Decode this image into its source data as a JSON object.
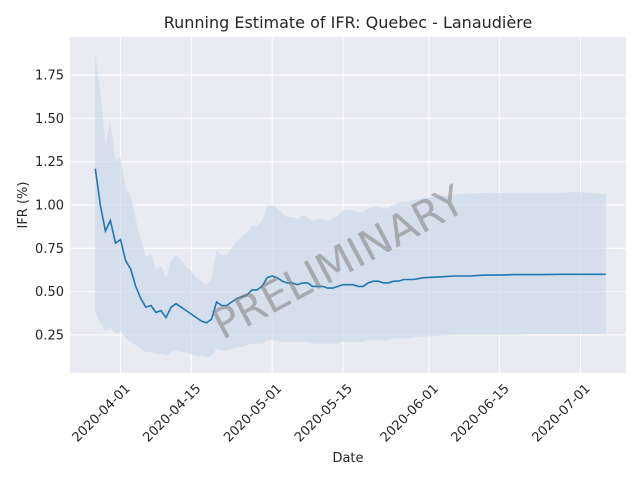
{
  "chart_data": {
    "type": "line",
    "title": "Running Estimate of IFR: Quebec - Lanaudière",
    "xlabel": "Date",
    "ylabel": "IFR (%)",
    "watermark": "PRELIMINARY",
    "x_range": [
      "2020-03-22",
      "2020-07-10"
    ],
    "ylim": [
      0.03,
      1.97
    ],
    "grid": true,
    "x_ticks": [
      "2020-04-01",
      "2020-04-15",
      "2020-05-01",
      "2020-05-15",
      "2020-06-01",
      "2020-06-15",
      "2020-07-01"
    ],
    "y_ticks": [
      0.25,
      0.5,
      0.75,
      1.0,
      1.25,
      1.5,
      1.75
    ],
    "y_tick_labels": [
      "0.25",
      "0.50",
      "0.75",
      "1.00",
      "1.25",
      "1.50",
      "1.75"
    ],
    "colors": {
      "line": "#1f77b4",
      "band": "#c7d6e8",
      "plot_bg": "#eaeaf2",
      "grid": "#ffffff"
    },
    "series": [
      {
        "role": "estimate",
        "points": [
          [
            "2020-03-27",
            1.21
          ],
          [
            "2020-03-28",
            1.0
          ],
          [
            "2020-03-29",
            0.85
          ],
          [
            "2020-03-30",
            0.91
          ],
          [
            "2020-03-31",
            0.78
          ],
          [
            "2020-04-01",
            0.8
          ],
          [
            "2020-04-02",
            0.68
          ],
          [
            "2020-04-03",
            0.63
          ],
          [
            "2020-04-04",
            0.53
          ],
          [
            "2020-04-05",
            0.46
          ],
          [
            "2020-04-06",
            0.41
          ],
          [
            "2020-04-07",
            0.42
          ],
          [
            "2020-04-08",
            0.38
          ],
          [
            "2020-04-09",
            0.39
          ],
          [
            "2020-04-10",
            0.35
          ],
          [
            "2020-04-11",
            0.41
          ],
          [
            "2020-04-12",
            0.43
          ],
          [
            "2020-04-13",
            0.41
          ],
          [
            "2020-04-14",
            0.39
          ],
          [
            "2020-04-15",
            0.37
          ],
          [
            "2020-04-16",
            0.35
          ],
          [
            "2020-04-17",
            0.33
          ],
          [
            "2020-04-18",
            0.32
          ],
          [
            "2020-04-19",
            0.34
          ],
          [
            "2020-04-20",
            0.44
          ],
          [
            "2020-04-21",
            0.42
          ],
          [
            "2020-04-22",
            0.42
          ],
          [
            "2020-04-23",
            0.44
          ],
          [
            "2020-04-24",
            0.46
          ],
          [
            "2020-04-25",
            0.47
          ],
          [
            "2020-04-26",
            0.48
          ],
          [
            "2020-04-27",
            0.51
          ],
          [
            "2020-04-28",
            0.51
          ],
          [
            "2020-04-29",
            0.53
          ],
          [
            "2020-04-30",
            0.58
          ],
          [
            "2020-05-01",
            0.59
          ],
          [
            "2020-05-02",
            0.58
          ],
          [
            "2020-05-03",
            0.56
          ],
          [
            "2020-05-04",
            0.55
          ],
          [
            "2020-05-05",
            0.55
          ],
          [
            "2020-05-06",
            0.54
          ],
          [
            "2020-05-07",
            0.55
          ],
          [
            "2020-05-08",
            0.55
          ],
          [
            "2020-05-09",
            0.53
          ],
          [
            "2020-05-10",
            0.53
          ],
          [
            "2020-05-11",
            0.53
          ],
          [
            "2020-05-12",
            0.52
          ],
          [
            "2020-05-13",
            0.52
          ],
          [
            "2020-05-14",
            0.53
          ],
          [
            "2020-05-15",
            0.54
          ],
          [
            "2020-05-16",
            0.54
          ],
          [
            "2020-05-17",
            0.54
          ],
          [
            "2020-05-18",
            0.53
          ],
          [
            "2020-05-19",
            0.53
          ],
          [
            "2020-05-20",
            0.55
          ],
          [
            "2020-05-21",
            0.56
          ],
          [
            "2020-05-22",
            0.56
          ],
          [
            "2020-05-23",
            0.55
          ],
          [
            "2020-05-24",
            0.55
          ],
          [
            "2020-05-25",
            0.56
          ],
          [
            "2020-05-26",
            0.56
          ],
          [
            "2020-05-27",
            0.57
          ],
          [
            "2020-05-28",
            0.57
          ],
          [
            "2020-05-29",
            0.57
          ],
          [
            "2020-05-31",
            0.58
          ],
          [
            "2020-06-03",
            0.585
          ],
          [
            "2020-06-06",
            0.59
          ],
          [
            "2020-06-09",
            0.59
          ],
          [
            "2020-06-12",
            0.595
          ],
          [
            "2020-06-15",
            0.595
          ],
          [
            "2020-06-18",
            0.598
          ],
          [
            "2020-06-21",
            0.598
          ],
          [
            "2020-06-24",
            0.598
          ],
          [
            "2020-06-27",
            0.6
          ],
          [
            "2020-06-30",
            0.6
          ],
          [
            "2020-07-03",
            0.6
          ],
          [
            "2020-07-06",
            0.6
          ]
        ]
      },
      {
        "role": "interval-upper",
        "points": [
          [
            "2020-03-27",
            1.88
          ],
          [
            "2020-03-28",
            1.65
          ],
          [
            "2020-03-29",
            1.35
          ],
          [
            "2020-03-30",
            1.48
          ],
          [
            "2020-03-31",
            1.25
          ],
          [
            "2020-04-01",
            1.28
          ],
          [
            "2020-04-02",
            1.1
          ],
          [
            "2020-04-03",
            1.05
          ],
          [
            "2020-04-04",
            0.92
          ],
          [
            "2020-04-05",
            0.8
          ],
          [
            "2020-04-06",
            0.7
          ],
          [
            "2020-04-07",
            0.72
          ],
          [
            "2020-04-08",
            0.63
          ],
          [
            "2020-04-09",
            0.65
          ],
          [
            "2020-04-10",
            0.58
          ],
          [
            "2020-04-11",
            0.68
          ],
          [
            "2020-04-12",
            0.71
          ],
          [
            "2020-04-13",
            0.68
          ],
          [
            "2020-04-14",
            0.64
          ],
          [
            "2020-04-15",
            0.62
          ],
          [
            "2020-04-16",
            0.58
          ],
          [
            "2020-04-17",
            0.56
          ],
          [
            "2020-04-18",
            0.54
          ],
          [
            "2020-04-19",
            0.57
          ],
          [
            "2020-04-20",
            0.74
          ],
          [
            "2020-04-21",
            0.71
          ],
          [
            "2020-04-22",
            0.71
          ],
          [
            "2020-04-23",
            0.75
          ],
          [
            "2020-04-24",
            0.79
          ],
          [
            "2020-04-25",
            0.82
          ],
          [
            "2020-04-26",
            0.84
          ],
          [
            "2020-04-27",
            0.88
          ],
          [
            "2020-04-28",
            0.88
          ],
          [
            "2020-04-29",
            0.91
          ],
          [
            "2020-04-30",
            0.99
          ],
          [
            "2020-05-01",
            1.0
          ],
          [
            "2020-05-02",
            0.98
          ],
          [
            "2020-05-03",
            0.95
          ],
          [
            "2020-05-04",
            0.93
          ],
          [
            "2020-05-05",
            0.93
          ],
          [
            "2020-05-06",
            0.92
          ],
          [
            "2020-05-07",
            0.94
          ],
          [
            "2020-05-08",
            0.93
          ],
          [
            "2020-05-09",
            0.91
          ],
          [
            "2020-05-10",
            0.92
          ],
          [
            "2020-05-11",
            0.92
          ],
          [
            "2020-05-12",
            0.91
          ],
          [
            "2020-05-13",
            0.92
          ],
          [
            "2020-05-14",
            0.94
          ],
          [
            "2020-05-15",
            0.97
          ],
          [
            "2020-05-16",
            0.97
          ],
          [
            "2020-05-17",
            0.97
          ],
          [
            "2020-05-18",
            0.96
          ],
          [
            "2020-05-19",
            0.96
          ],
          [
            "2020-05-20",
            0.98
          ],
          [
            "2020-05-21",
            0.99
          ],
          [
            "2020-05-22",
            0.99
          ],
          [
            "2020-05-23",
            0.98
          ],
          [
            "2020-05-24",
            0.98
          ],
          [
            "2020-05-25",
            1.0
          ],
          [
            "2020-05-26",
            1.01
          ],
          [
            "2020-05-27",
            1.02
          ],
          [
            "2020-05-28",
            1.02
          ],
          [
            "2020-05-29",
            1.03
          ],
          [
            "2020-05-31",
            1.04
          ],
          [
            "2020-06-03",
            1.05
          ],
          [
            "2020-06-06",
            1.06
          ],
          [
            "2020-06-09",
            1.065
          ],
          [
            "2020-06-12",
            1.07
          ],
          [
            "2020-06-15",
            1.07
          ],
          [
            "2020-06-18",
            1.07
          ],
          [
            "2020-06-21",
            1.07
          ],
          [
            "2020-06-24",
            1.07
          ],
          [
            "2020-06-27",
            1.07
          ],
          [
            "2020-06-30",
            1.075
          ],
          [
            "2020-07-03",
            1.07
          ],
          [
            "2020-07-06",
            1.065
          ]
        ]
      },
      {
        "role": "interval-lower",
        "points": [
          [
            "2020-03-27",
            0.38
          ],
          [
            "2020-03-28",
            0.32
          ],
          [
            "2020-03-29",
            0.27
          ],
          [
            "2020-03-30",
            0.29
          ],
          [
            "2020-03-31",
            0.26
          ],
          [
            "2020-04-01",
            0.27
          ],
          [
            "2020-04-02",
            0.23
          ],
          [
            "2020-04-03",
            0.21
          ],
          [
            "2020-04-04",
            0.19
          ],
          [
            "2020-04-05",
            0.17
          ],
          [
            "2020-04-06",
            0.15
          ],
          [
            "2020-04-07",
            0.15
          ],
          [
            "2020-04-08",
            0.14
          ],
          [
            "2020-04-09",
            0.14
          ],
          [
            "2020-04-10",
            0.13
          ],
          [
            "2020-04-11",
            0.15
          ],
          [
            "2020-04-12",
            0.16
          ],
          [
            "2020-04-13",
            0.15
          ],
          [
            "2020-04-14",
            0.15
          ],
          [
            "2020-04-15",
            0.14
          ],
          [
            "2020-04-16",
            0.13
          ],
          [
            "2020-04-17",
            0.13
          ],
          [
            "2020-04-18",
            0.12
          ],
          [
            "2020-04-19",
            0.13
          ],
          [
            "2020-04-20",
            0.17
          ],
          [
            "2020-04-21",
            0.16
          ],
          [
            "2020-04-22",
            0.16
          ],
          [
            "2020-04-23",
            0.17
          ],
          [
            "2020-04-24",
            0.18
          ],
          [
            "2020-04-25",
            0.18
          ],
          [
            "2020-04-26",
            0.19
          ],
          [
            "2020-04-27",
            0.2
          ],
          [
            "2020-04-28",
            0.2
          ],
          [
            "2020-04-29",
            0.2
          ],
          [
            "2020-04-30",
            0.22
          ],
          [
            "2020-05-01",
            0.22
          ],
          [
            "2020-05-02",
            0.22
          ],
          [
            "2020-05-03",
            0.21
          ],
          [
            "2020-05-04",
            0.21
          ],
          [
            "2020-05-05",
            0.21
          ],
          [
            "2020-05-06",
            0.21
          ],
          [
            "2020-05-07",
            0.21
          ],
          [
            "2020-05-08",
            0.21
          ],
          [
            "2020-05-09",
            0.2
          ],
          [
            "2020-05-10",
            0.2
          ],
          [
            "2020-05-11",
            0.2
          ],
          [
            "2020-05-12",
            0.2
          ],
          [
            "2020-05-13",
            0.2
          ],
          [
            "2020-05-14",
            0.2
          ],
          [
            "2020-05-15",
            0.21
          ],
          [
            "2020-05-16",
            0.21
          ],
          [
            "2020-05-17",
            0.21
          ],
          [
            "2020-05-18",
            0.21
          ],
          [
            "2020-05-19",
            0.21
          ],
          [
            "2020-05-20",
            0.22
          ],
          [
            "2020-05-21",
            0.22
          ],
          [
            "2020-05-22",
            0.22
          ],
          [
            "2020-05-23",
            0.22
          ],
          [
            "2020-05-24",
            0.22
          ],
          [
            "2020-05-25",
            0.23
          ],
          [
            "2020-05-26",
            0.23
          ],
          [
            "2020-05-27",
            0.23
          ],
          [
            "2020-05-28",
            0.23
          ],
          [
            "2020-05-29",
            0.24
          ],
          [
            "2020-05-31",
            0.24
          ],
          [
            "2020-06-03",
            0.245
          ],
          [
            "2020-06-06",
            0.25
          ],
          [
            "2020-06-09",
            0.25
          ],
          [
            "2020-06-12",
            0.25
          ],
          [
            "2020-06-15",
            0.25
          ],
          [
            "2020-06-18",
            0.25
          ],
          [
            "2020-06-21",
            0.255
          ],
          [
            "2020-06-24",
            0.255
          ],
          [
            "2020-06-27",
            0.255
          ],
          [
            "2020-06-30",
            0.255
          ],
          [
            "2020-07-03",
            0.255
          ],
          [
            "2020-07-06",
            0.255
          ]
        ]
      }
    ]
  }
}
